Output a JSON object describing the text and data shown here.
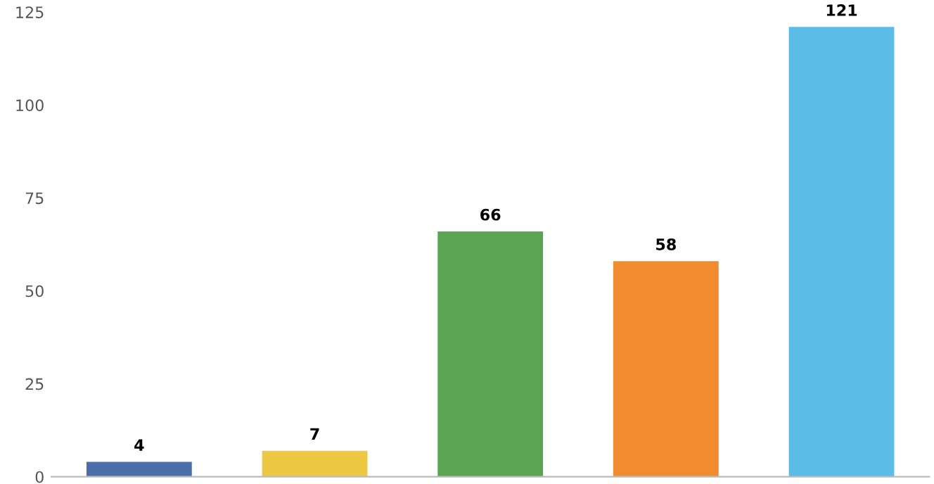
{
  "chart_data": {
    "type": "bar",
    "categories": [
      null,
      null,
      null,
      null,
      null
    ],
    "values": [
      4,
      7,
      66,
      58,
      121
    ],
    "colors": [
      "#4a6ea8",
      "#ecc843",
      "#5aa454",
      "#f08b2f",
      "#5bbce8"
    ],
    "ylim": [
      0,
      125
    ],
    "yticks": [
      0,
      25,
      50,
      75,
      100,
      125
    ],
    "data_labels": true,
    "grid": false
  }
}
